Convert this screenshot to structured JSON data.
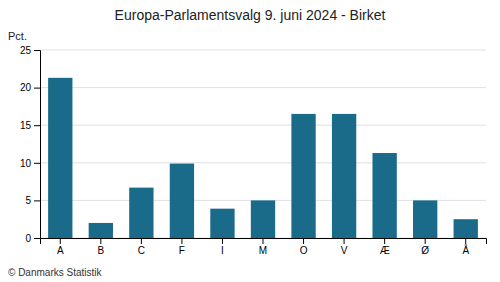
{
  "chart_data": {
    "type": "bar",
    "title": "Europa-Parlamentsvalg 9. juni 2024 - Birket",
    "ylabel": "Pct.",
    "annotations": [
      "© Danmarks Statistik"
    ],
    "categories": [
      "A",
      "B",
      "C",
      "F",
      "I",
      "M",
      "O",
      "V",
      "Æ",
      "Ø",
      "Å"
    ],
    "values": [
      21.3,
      2.0,
      6.7,
      9.9,
      3.9,
      5.0,
      16.5,
      16.5,
      11.3,
      5.0,
      2.5
    ],
    "color": "#1a6b8a",
    "ylim": [
      0,
      25
    ],
    "yticks": [
      0,
      5,
      10,
      15,
      20,
      25
    ],
    "grid": true
  }
}
